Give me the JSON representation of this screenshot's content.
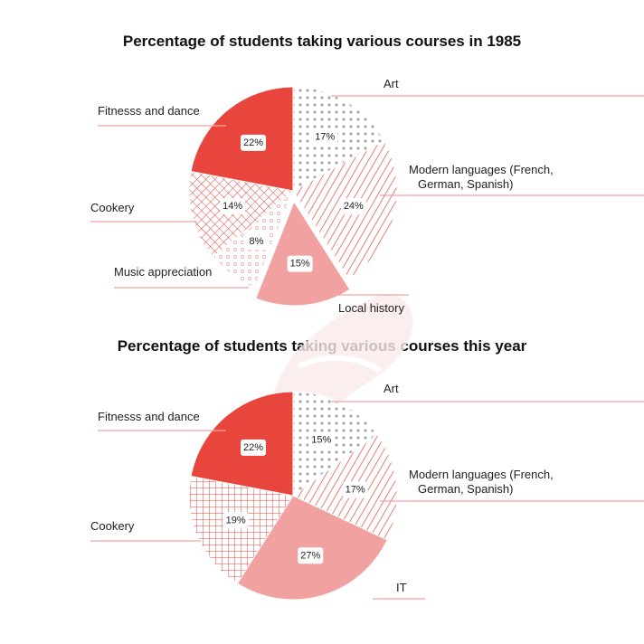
{
  "chart_data": [
    {
      "type": "pie",
      "title": "Percentage of students taking various courses in 1985",
      "series": [
        {
          "name": "Art",
          "value": 17,
          "label": "17%",
          "pattern": "dots"
        },
        {
          "name": "Modern languages (French, German, Spanish)",
          "lines": [
            "Modern languages (French,",
            "German, Spanish)"
          ],
          "value": 24,
          "label": "24%",
          "pattern": "diagonal"
        },
        {
          "name": "Local history",
          "value": 15,
          "label": "15%",
          "pattern": "solid-light"
        },
        {
          "name": "Music appreciation",
          "value": 8,
          "label": "8%",
          "pattern": "circles"
        },
        {
          "name": "Cookery",
          "value": 14,
          "label": "14%",
          "pattern": "crosshatch"
        },
        {
          "name": "Fitnesss and dance",
          "value": 22,
          "label": "22%",
          "pattern": "solid"
        }
      ]
    },
    {
      "type": "pie",
      "title": "Percentage of students taking various courses this year",
      "series": [
        {
          "name": "Art",
          "value": 15,
          "label": "15%",
          "pattern": "dots"
        },
        {
          "name": "Modern languages (French, German, Spanish)",
          "lines": [
            "Modern languages (French,",
            "German, Spanish)"
          ],
          "value": 17,
          "label": "17%",
          "pattern": "diagonal"
        },
        {
          "name": "IT",
          "value": 27,
          "label": "27%",
          "pattern": "solid-light"
        },
        {
          "name": "Cookery",
          "value": 19,
          "label": "19%",
          "pattern": "grid"
        },
        {
          "name": "Fitnesss and dance",
          "value": 22,
          "label": "22%",
          "pattern": "solid"
        }
      ]
    }
  ],
  "colors": {
    "accent": "#e8453c",
    "light": "#f2a1a1",
    "line": "#f0a3a3",
    "watermark": "#fbeaea"
  }
}
